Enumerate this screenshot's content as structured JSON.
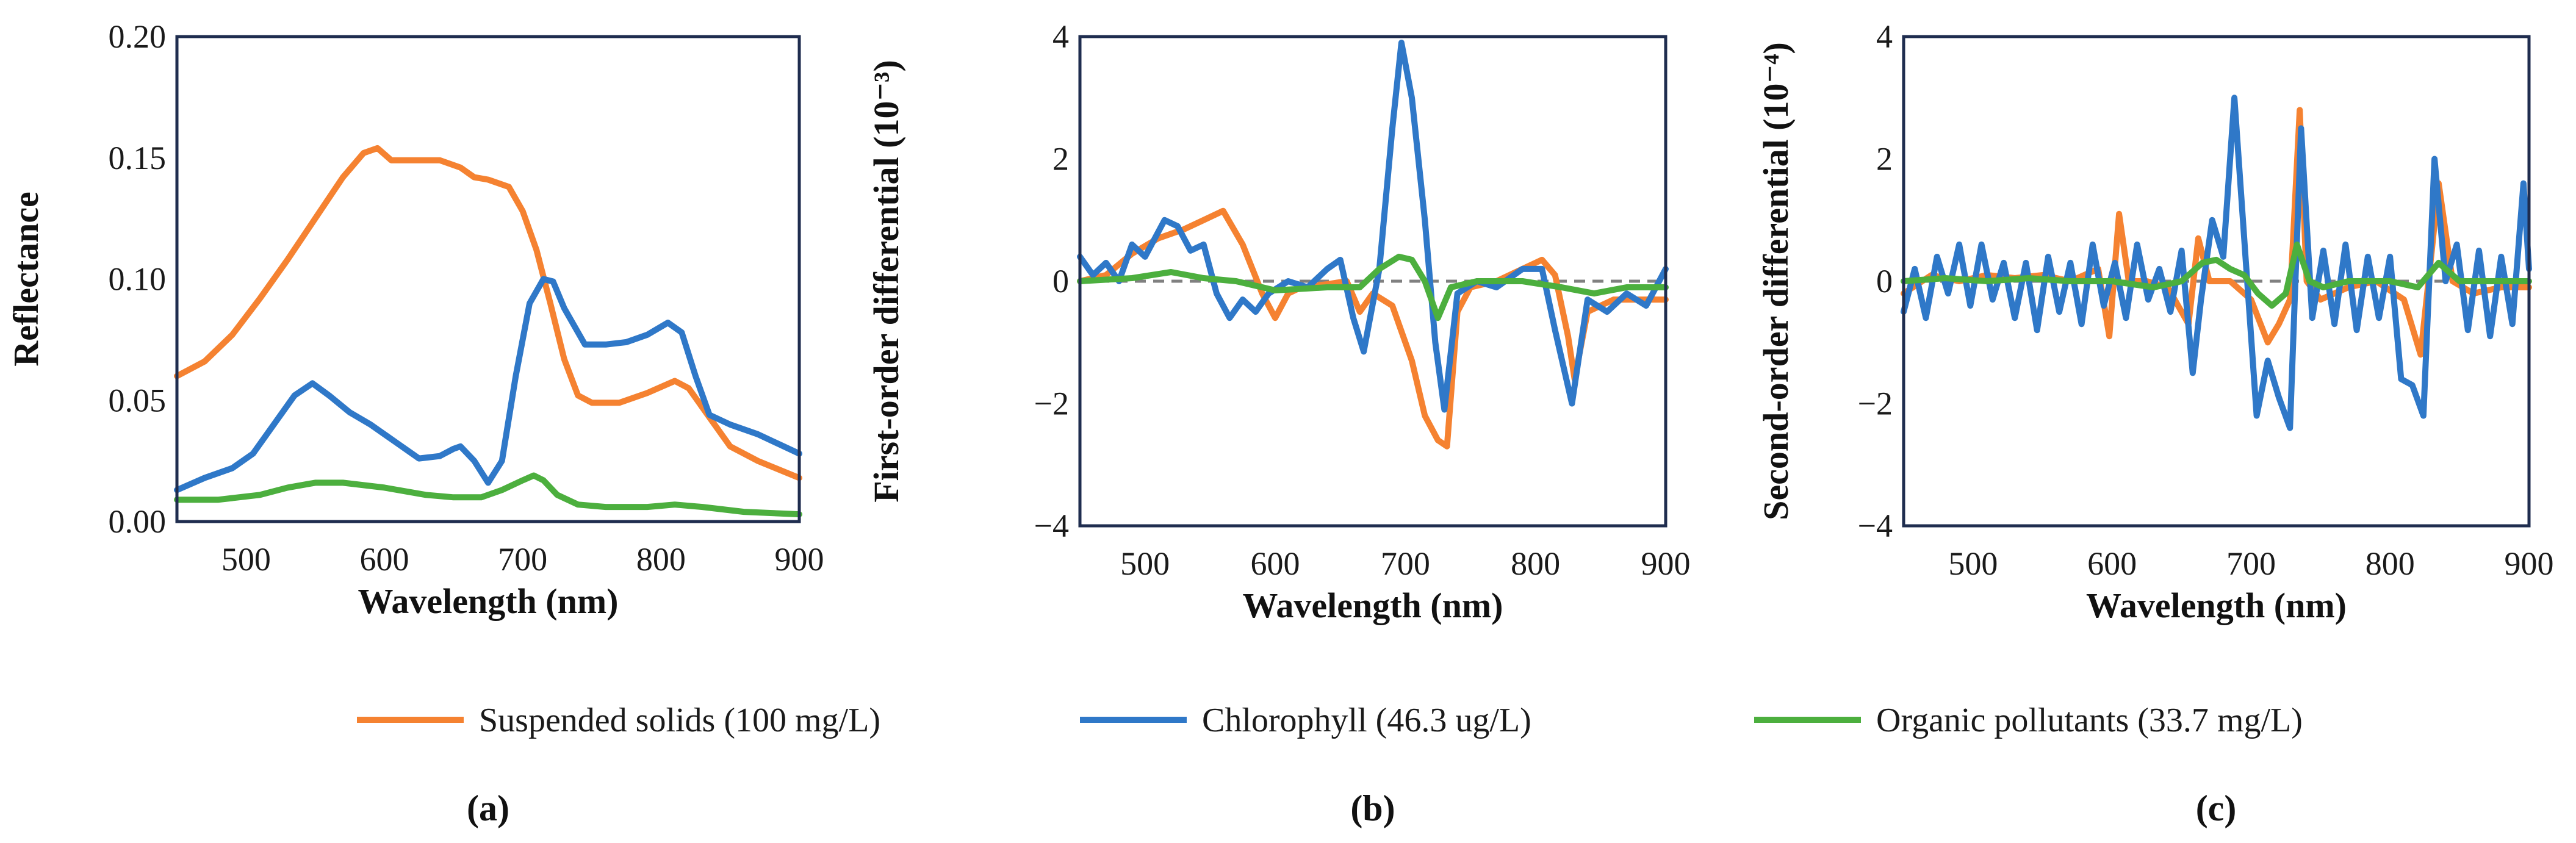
{
  "colors": {
    "suspended": "#F58231",
    "chlorophyll": "#2F78C8",
    "organic": "#4CAF3E",
    "axis": "#1F2D4F",
    "zero_line": "#808080"
  },
  "legend": [
    {
      "key": "suspended",
      "label": "Suspended solids (100 mg/L)"
    },
    {
      "key": "chlorophyll",
      "label": "Chlorophyll (46.3 ug/L)"
    },
    {
      "key": "organic",
      "label": "Organic pollutants (33.7 mg/L)"
    }
  ],
  "chart_data": [
    {
      "type": "line",
      "panel_label": "(a)",
      "xlabel": "Wavelength (nm)",
      "ylabel": "Reflectance",
      "xlim": [
        450,
        900
      ],
      "ylim": [
        0,
        0.2
      ],
      "xticks": [
        500,
        600,
        700,
        800,
        900
      ],
      "yticks": [
        0.0,
        0.05,
        0.1,
        0.15,
        0.2
      ],
      "ytick_labels": [
        "0.00",
        "0.05",
        "0.10",
        "0.15",
        "0.20"
      ],
      "zero_line": false,
      "series": [
        {
          "key": "suspended",
          "name": "Suspended solids (100 mg/L)",
          "x": [
            450,
            470,
            490,
            510,
            530,
            550,
            570,
            585,
            595,
            605,
            620,
            640,
            655,
            665,
            675,
            690,
            700,
            710,
            720,
            730,
            740,
            750,
            770,
            790,
            810,
            820,
            830,
            850,
            870,
            900
          ],
          "y": [
            0.06,
            0.066,
            0.077,
            0.092,
            0.108,
            0.125,
            0.142,
            0.152,
            0.154,
            0.149,
            0.149,
            0.149,
            0.146,
            0.142,
            0.141,
            0.138,
            0.128,
            0.112,
            0.09,
            0.067,
            0.052,
            0.049,
            0.049,
            0.053,
            0.058,
            0.055,
            0.047,
            0.031,
            0.025,
            0.018
          ]
        },
        {
          "key": "chlorophyll",
          "name": "Chlorophyll (46.3 ug/L)",
          "x": [
            450,
            470,
            490,
            505,
            520,
            535,
            548,
            560,
            575,
            590,
            610,
            625,
            640,
            650,
            655,
            665,
            675,
            685,
            695,
            705,
            715,
            722,
            730,
            745,
            760,
            775,
            790,
            805,
            815,
            825,
            835,
            850,
            870,
            900
          ],
          "y": [
            0.013,
            0.018,
            0.022,
            0.028,
            0.04,
            0.052,
            0.057,
            0.052,
            0.045,
            0.04,
            0.032,
            0.026,
            0.027,
            0.03,
            0.031,
            0.025,
            0.016,
            0.025,
            0.06,
            0.09,
            0.1,
            0.099,
            0.088,
            0.073,
            0.073,
            0.074,
            0.077,
            0.082,
            0.078,
            0.06,
            0.044,
            0.04,
            0.036,
            0.028
          ]
        },
        {
          "key": "organic",
          "name": "Organic pollutants (33.7 mg/L)",
          "x": [
            450,
            480,
            510,
            530,
            550,
            570,
            600,
            630,
            650,
            670,
            685,
            700,
            708,
            715,
            725,
            740,
            760,
            790,
            810,
            830,
            860,
            900
          ],
          "y": [
            0.009,
            0.009,
            0.011,
            0.014,
            0.016,
            0.016,
            0.014,
            0.011,
            0.01,
            0.01,
            0.013,
            0.017,
            0.019,
            0.017,
            0.011,
            0.007,
            0.006,
            0.006,
            0.007,
            0.006,
            0.004,
            0.003
          ]
        }
      ]
    },
    {
      "type": "line",
      "panel_label": "(b)",
      "xlabel": "Wavelength (nm)",
      "ylabel": "First-order differential (10⁻³)",
      "xlim": [
        450,
        900
      ],
      "ylim": [
        -4,
        4
      ],
      "xticks": [
        500,
        600,
        700,
        800,
        900
      ],
      "yticks": [
        -4,
        -2,
        0,
        2,
        4
      ],
      "ytick_labels": [
        "−4",
        "−2",
        "0",
        "2",
        "4"
      ],
      "zero_line": true,
      "series": [
        {
          "key": "suspended",
          "name": "Suspended solids (100 mg/L)",
          "x": [
            450,
            470,
            490,
            510,
            530,
            545,
            560,
            575,
            590,
            600,
            610,
            620,
            640,
            655,
            665,
            675,
            690,
            705,
            715,
            725,
            732,
            740,
            750,
            770,
            790,
            805,
            815,
            825,
            830,
            840,
            860,
            880,
            900
          ],
          "y": [
            0.0,
            0.1,
            0.45,
            0.7,
            0.85,
            1.0,
            1.15,
            0.6,
            -0.2,
            -0.6,
            -0.2,
            -0.1,
            -0.05,
            0.0,
            -0.5,
            -0.2,
            -0.4,
            -1.3,
            -2.2,
            -2.6,
            -2.7,
            -0.5,
            -0.1,
            0.0,
            0.2,
            0.35,
            0.1,
            -0.9,
            -1.6,
            -0.5,
            -0.3,
            -0.3,
            -0.3
          ]
        },
        {
          "key": "chlorophyll",
          "name": "Chlorophyll (46.3 ug/L)",
          "x": [
            450,
            460,
            470,
            480,
            490,
            500,
            515,
            525,
            535,
            545,
            555,
            565,
            575,
            585,
            595,
            610,
            625,
            640,
            650,
            660,
            668,
            680,
            690,
            697,
            705,
            715,
            723,
            730,
            740,
            755,
            770,
            790,
            805,
            815,
            828,
            840,
            855,
            870,
            885,
            900
          ],
          "y": [
            0.4,
            0.1,
            0.3,
            0.0,
            0.6,
            0.4,
            1.0,
            0.9,
            0.5,
            0.6,
            -0.2,
            -0.6,
            -0.3,
            -0.5,
            -0.2,
            0.0,
            -0.1,
            0.2,
            0.35,
            -0.6,
            -1.15,
            0.2,
            2.5,
            3.9,
            3.0,
            1.0,
            -1.0,
            -2.1,
            -0.2,
            0.0,
            -0.1,
            0.2,
            0.2,
            -0.8,
            -2.0,
            -0.3,
            -0.5,
            -0.2,
            -0.4,
            0.2
          ]
        },
        {
          "key": "organic",
          "name": "Organic pollutants (33.7 mg/L)",
          "x": [
            450,
            490,
            520,
            545,
            570,
            600,
            640,
            665,
            680,
            695,
            705,
            715,
            725,
            735,
            755,
            790,
            820,
            845,
            870,
            900
          ],
          "y": [
            0.0,
            0.05,
            0.15,
            0.05,
            0.0,
            -0.15,
            -0.1,
            -0.1,
            0.2,
            0.4,
            0.35,
            0.0,
            -0.6,
            -0.1,
            0.0,
            0.0,
            -0.1,
            -0.2,
            -0.1,
            -0.1
          ]
        }
      ]
    },
    {
      "type": "line",
      "panel_label": "(c)",
      "xlabel": "Wavelength (nm)",
      "ylabel": "Second-order differential (10⁻⁴)",
      "xlim": [
        450,
        900
      ],
      "ylim": [
        -4,
        4
      ],
      "xticks": [
        500,
        600,
        700,
        800,
        900
      ],
      "yticks": [
        -4,
        -2,
        0,
        2,
        4
      ],
      "ytick_labels": [
        "−4",
        "−2",
        "0",
        "2",
        "4"
      ],
      "zero_line": true,
      "series": [
        {
          "key": "suspended",
          "name": "Suspended solids (100 mg/L)",
          "x": [
            450,
            470,
            490,
            510,
            530,
            550,
            570,
            590,
            598,
            605,
            612,
            625,
            640,
            655,
            662,
            670,
            685,
            700,
            712,
            720,
            728,
            735,
            740,
            750,
            770,
            790,
            810,
            822,
            830,
            835,
            845,
            860,
            880,
            900
          ],
          "y": [
            -0.2,
            0.1,
            0.0,
            0.1,
            0.05,
            0.1,
            0.0,
            0.2,
            -0.9,
            1.1,
            0.0,
            0.0,
            -0.1,
            -0.7,
            0.7,
            0.0,
            0.0,
            -0.3,
            -1.0,
            -0.7,
            -0.3,
            2.8,
            0.0,
            -0.3,
            -0.1,
            0.0,
            -0.3,
            -1.2,
            0.5,
            1.6,
            0.0,
            -0.2,
            -0.1,
            -0.1
          ]
        },
        {
          "key": "chlorophyll",
          "name": "Chlorophyll (46.3 ug/L)",
          "x": [
            450,
            458,
            466,
            474,
            482,
            490,
            498,
            506,
            514,
            522,
            530,
            538,
            546,
            554,
            562,
            570,
            578,
            586,
            594,
            602,
            610,
            618,
            626,
            634,
            642,
            650,
            658,
            664,
            672,
            680,
            688,
            696,
            704,
            712,
            720,
            728,
            736,
            744,
            752,
            760,
            768,
            776,
            784,
            792,
            800,
            808,
            816,
            824,
            832,
            840,
            848,
            856,
            864,
            872,
            880,
            888,
            896,
            900
          ],
          "y": [
            -0.5,
            0.2,
            -0.6,
            0.4,
            -0.2,
            0.6,
            -0.4,
            0.6,
            -0.3,
            0.3,
            -0.6,
            0.3,
            -0.8,
            0.4,
            -0.5,
            0.3,
            -0.7,
            0.6,
            -0.4,
            0.3,
            -0.6,
            0.6,
            -0.3,
            0.2,
            -0.5,
            0.5,
            -1.5,
            -0.3,
            1.0,
            0.4,
            3.0,
            0.4,
            -2.2,
            -1.3,
            -1.9,
            -2.4,
            2.5,
            -0.6,
            0.5,
            -0.7,
            0.6,
            -0.8,
            0.4,
            -0.6,
            0.4,
            -1.6,
            -1.7,
            -2.2,
            2.0,
            0.0,
            0.6,
            -0.8,
            0.5,
            -0.9,
            0.4,
            -0.7,
            1.6,
            0.2
          ]
        },
        {
          "key": "organic",
          "name": "Organic pollutants (33.7 mg/L)",
          "x": [
            450,
            480,
            510,
            540,
            570,
            600,
            630,
            650,
            665,
            675,
            685,
            695,
            705,
            715,
            725,
            733,
            742,
            752,
            770,
            800,
            820,
            835,
            850,
            870,
            900
          ],
          "y": [
            0.0,
            0.05,
            0.0,
            0.05,
            0.0,
            0.0,
            -0.1,
            0.0,
            0.3,
            0.35,
            0.2,
            0.1,
            -0.2,
            -0.4,
            -0.2,
            0.6,
            0.0,
            -0.1,
            0.0,
            0.0,
            -0.1,
            0.3,
            0.0,
            0.0,
            0.0
          ]
        }
      ]
    }
  ]
}
